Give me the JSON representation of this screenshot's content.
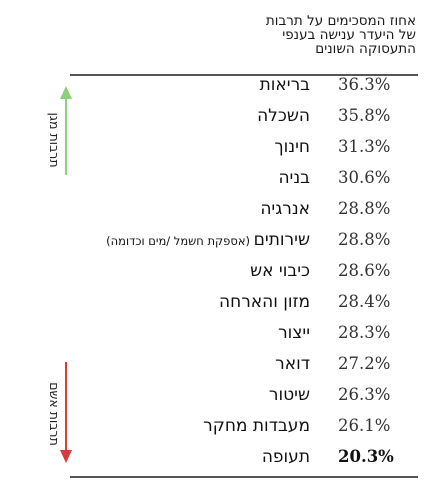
{
  "chart_data": {
    "type": "table",
    "title": "אחוז המסכימים על תרבות\nשל היעדר ענישה בענפי\nהתעסוקה השונים",
    "unit": "%",
    "rows": [
      {
        "category": "בריאות",
        "value": 36.3
      },
      {
        "category": "השכלה",
        "value": 35.8
      },
      {
        "category": "חינוך",
        "value": 31.3
      },
      {
        "category": "בניה",
        "value": 30.6
      },
      {
        "category": "אנרגיה",
        "value": 28.8
      },
      {
        "category": "שירותים",
        "note": "(אספקת חשמל /מים וכדומה)",
        "value": 28.8
      },
      {
        "category": "כיבוי אש",
        "value": 28.6
      },
      {
        "category": "מזון והארחה",
        "value": 28.4
      },
      {
        "category": "ייצור",
        "value": 28.3
      },
      {
        "category": "דואר",
        "value": 27.2
      },
      {
        "category": "שיטור",
        "value": 26.3
      },
      {
        "category": "מעבדות מחקר",
        "value": 26.1
      },
      {
        "category": "תעופה",
        "value": 20.3
      }
    ],
    "value_labels": [
      "36.3%",
      "35.8%",
      "31.3%",
      "30.6%",
      "28.8%",
      "28.8%",
      "28.6%",
      "28.4%",
      "28.3%",
      "27.2%",
      "26.3%",
      "26.1%",
      "20.3%"
    ],
    "bold_rows": [
      12
    ],
    "side_labels": [
      {
        "text": "תרבות מגן",
        "color": "#8fce7a",
        "direction": "up"
      },
      {
        "text": "תרבות אשם",
        "color": "#d93a3a",
        "direction": "down"
      }
    ]
  }
}
